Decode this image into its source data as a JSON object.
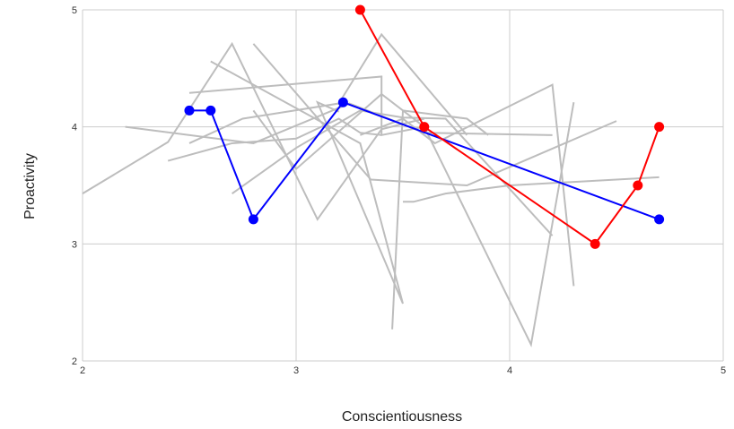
{
  "chart_data": {
    "type": "line",
    "title": "",
    "xlabel": "Conscientiousness",
    "ylabel": "Proactivity",
    "xlim": [
      2,
      5
    ],
    "ylim": [
      2,
      5
    ],
    "x_ticks": [
      "2",
      "3",
      "4",
      "5"
    ],
    "y_ticks": [
      "2",
      "3",
      "4",
      "5"
    ],
    "grid": true,
    "legend": "none",
    "background_series_color": "#bdbdbd",
    "background_series": [
      {
        "points": [
          [
            2.0,
            3.43
          ],
          [
            2.4,
            3.87
          ],
          [
            2.7,
            4.71
          ],
          [
            3.1,
            3.21
          ],
          [
            3.4,
            3.98
          ],
          [
            3.6,
            4.07
          ]
        ]
      },
      {
        "points": [
          [
            2.2,
            4.0
          ],
          [
            2.8,
            3.86
          ],
          [
            3.25,
            4.2
          ],
          [
            3.6,
            3.95
          ],
          [
            4.2,
            3.93
          ]
        ]
      },
      {
        "points": [
          [
            2.5,
            4.29
          ],
          [
            3.4,
            4.43
          ],
          [
            3.4,
            3.93
          ],
          [
            3.6,
            4.0
          ]
        ]
      },
      {
        "points": [
          [
            2.6,
            4.56
          ],
          [
            3.3,
            3.86
          ],
          [
            3.5,
            2.49
          ],
          [
            3.1,
            4.21
          ],
          [
            3.2,
            4.13
          ]
        ]
      },
      {
        "points": [
          [
            2.8,
            4.71
          ],
          [
            3.35,
            3.55
          ],
          [
            3.8,
            3.5
          ],
          [
            4.5,
            4.05
          ]
        ]
      },
      {
        "points": [
          [
            2.4,
            3.71
          ],
          [
            2.7,
            3.86
          ],
          [
            3.0,
            3.9
          ],
          [
            3.2,
            4.07
          ],
          [
            3.3,
            3.95
          ],
          [
            3.4,
            3.93
          ]
        ]
      },
      {
        "points": [
          [
            2.7,
            3.43
          ],
          [
            3.0,
            3.82
          ],
          [
            3.3,
            4.14
          ],
          [
            3.5,
            4.08
          ],
          [
            3.7,
            4.07
          ],
          [
            4.2,
            3.07
          ]
        ]
      },
      {
        "points": [
          [
            2.8,
            4.14
          ],
          [
            3.0,
            3.64
          ],
          [
            3.4,
            4.28
          ],
          [
            3.6,
            4.0
          ],
          [
            4.1,
            2.14
          ],
          [
            4.3,
            4.21
          ]
        ]
      },
      {
        "points": [
          [
            3.45,
            2.27
          ],
          [
            3.5,
            4.14
          ],
          [
            3.8,
            4.07
          ],
          [
            3.9,
            3.93
          ]
        ]
      },
      {
        "points": [
          [
            3.5,
            3.36
          ],
          [
            3.55,
            3.36
          ],
          [
            3.7,
            3.43
          ],
          [
            4.0,
            3.5
          ],
          [
            4.7,
            3.57
          ]
        ]
      },
      {
        "points": [
          [
            3.3,
            3.93
          ],
          [
            3.5,
            4.07
          ],
          [
            3.65,
            3.86
          ],
          [
            4.2,
            4.36
          ],
          [
            4.3,
            2.64
          ]
        ]
      },
      {
        "points": [
          [
            2.5,
            3.86
          ],
          [
            2.75,
            4.07
          ],
          [
            3.2,
            4.2
          ],
          [
            3.4,
            4.79
          ],
          [
            3.8,
            3.93
          ]
        ]
      }
    ],
    "series": [
      {
        "color": "#0000ff",
        "points": [
          [
            2.5,
            4.14
          ],
          [
            2.6,
            4.14
          ],
          [
            2.8,
            3.21
          ],
          [
            3.22,
            4.21
          ],
          [
            4.7,
            3.21
          ]
        ]
      },
      {
        "color": "#ff0000",
        "points": [
          [
            3.3,
            5.0
          ],
          [
            3.6,
            4.0
          ],
          [
            4.4,
            3.0
          ],
          [
            4.6,
            3.5
          ],
          [
            4.7,
            4.0
          ]
        ]
      }
    ]
  }
}
